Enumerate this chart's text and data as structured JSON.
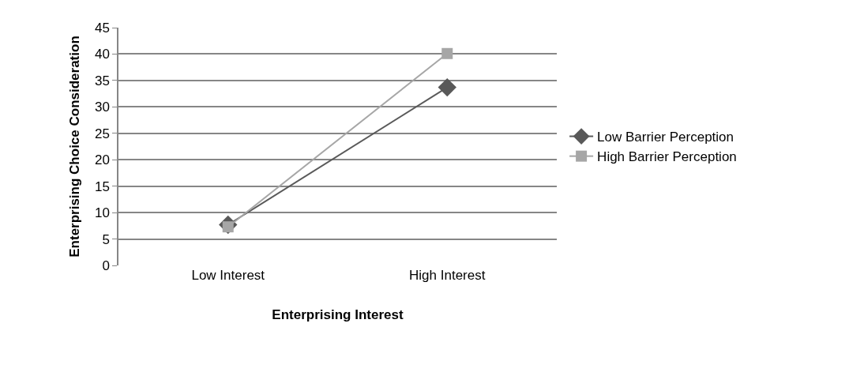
{
  "chart_data": {
    "type": "line",
    "xlabel": "Enterprising Interest",
    "ylabel": "Enterprising Choice Consideration",
    "categories": [
      "Low Interest",
      "High Interest"
    ],
    "series": [
      {
        "name": "Low Barrier Perception",
        "color": "#595959",
        "marker": "diamond",
        "values": [
          7.7,
          33.7
        ]
      },
      {
        "name": "High Barrier Perception",
        "color": "#a6a6a6",
        "marker": "square",
        "values": [
          7.3,
          40.1
        ]
      }
    ],
    "ylim": [
      0,
      45
    ],
    "yticks": [
      0,
      5,
      10,
      15,
      20,
      25,
      30,
      35,
      40,
      45
    ],
    "grid": "y",
    "legend": "right",
    "line_style": "solid"
  }
}
